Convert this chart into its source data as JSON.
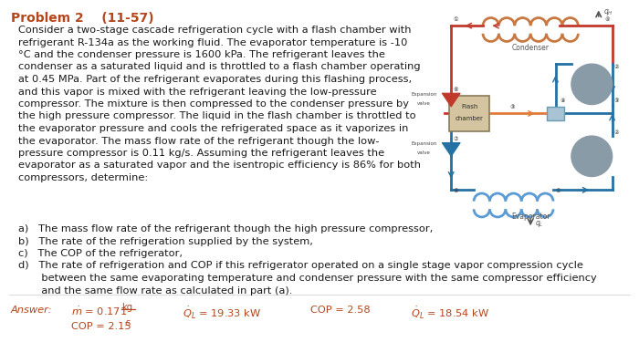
{
  "title": "Problem 2    (11-57)",
  "title_color": "#b5451b",
  "body_text": [
    "Consider a two-stage cascade refrigeration cycle with a flash chamber with",
    "refrigerant R-134a as the working fluid. The evaporator temperature is -10",
    "°C and the condenser pressure is 1600 kPa. The refrigerant leaves the",
    "condenser as a saturated liquid and is throttled to a flash chamber operating",
    "at 0.45 MPa. Part of the refrigerant evaporates during this flashing process,",
    "and this vapor is mixed with the refrigerant leaving the low-pressure",
    "compressor. The mixture is then compressed to the condenser pressure by",
    "the high pressure compressor. The liquid in the flash chamber is throttled to",
    "the evaporator pressure and cools the refrigerated space as it vaporizes in",
    "the evaporator. The mass flow rate of the refrigerant though the low-",
    "pressure compressor is 0.11 kg/s. Assuming the refrigerant leaves the",
    "evaporator as a saturated vapor and the isentropic efficiency is 86% for both",
    "compressors, determine:"
  ],
  "list_items_ab": [
    "a)   The mass flow rate of the refrigerant though the high pressure compressor,",
    "b)   The rate of the refrigeration supplied by the system,",
    "c)   The COP of the refrigerator,",
    "d)   The rate of refrigeration and COP if this refrigerator operated on a single stage vapor compression cycle"
  ],
  "list_item_d2": "       between the same evaporating temperature and condenser pressure with the same compressor efficiency",
  "list_item_d3": "       and the same flow rate as calculated in part (a).",
  "answer_label": "Answer:",
  "answer_color": "#b5451b",
  "bg_color": "#ffffff",
  "text_color": "#1a1a1a",
  "font_size": 8.2,
  "title_font_size": 10.0,
  "diag_bg": "#f5f0e8",
  "pipe_hot": "#c0392b",
  "pipe_cold": "#2471a3",
  "comp_color": "#7f8c8d"
}
